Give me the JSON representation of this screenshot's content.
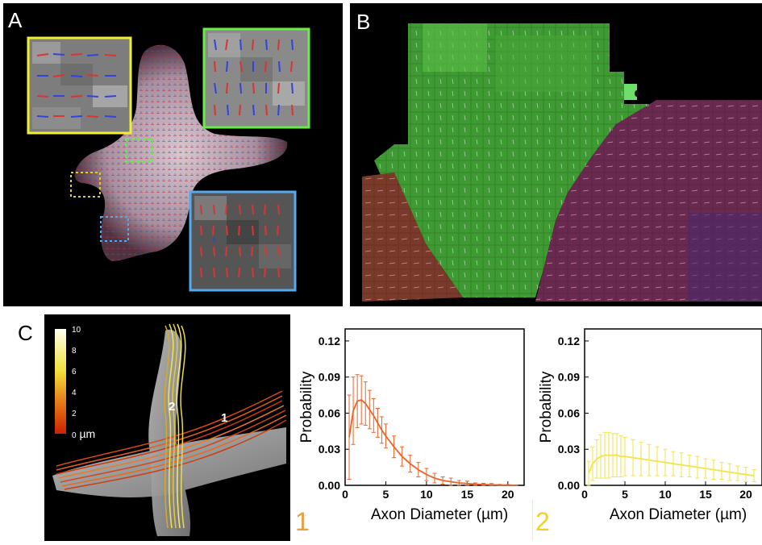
{
  "panel_a": {
    "label": "A"
  },
  "panel_b": {
    "label": "B"
  },
  "panel_c": {
    "label": "C",
    "colorbar": {
      "ticks": [
        "10",
        "8",
        "6",
        "4",
        "2",
        "0"
      ],
      "unit": "µm",
      "bottom_label": "0"
    },
    "bundle_labels": [
      "2",
      "1"
    ]
  },
  "colors": {
    "orange": "#e8642a",
    "yellow": "#f2e34a",
    "green_box": "#66ee44",
    "yellow_box": "#eeee33",
    "blue_box": "#55aaee"
  },
  "chart_data": [
    {
      "type": "line",
      "title": "",
      "panel_number": "1",
      "xlabel": "Axon Diameter (µm)",
      "ylabel": "Probability",
      "xlim": [
        0,
        22
      ],
      "ylim": [
        0,
        0.13
      ],
      "xticks": [
        "0",
        "5",
        "10",
        "15",
        "20"
      ],
      "yticks": [
        "0.00",
        "0.03",
        "0.06",
        "0.09",
        "0.12"
      ],
      "series": [
        {
          "x": [
            0.5,
            1,
            1.5,
            2,
            2.5,
            3,
            3.5,
            4,
            4.5,
            5,
            6,
            7,
            8,
            9,
            10,
            11,
            12,
            13,
            14,
            15,
            16,
            17,
            18,
            19,
            20,
            21
          ],
          "values": [
            0.04,
            0.062,
            0.07,
            0.071,
            0.068,
            0.063,
            0.058,
            0.052,
            0.046,
            0.041,
            0.032,
            0.024,
            0.018,
            0.013,
            0.009,
            0.006,
            0.004,
            0.003,
            0.002,
            0.0015,
            0.001,
            0.0007,
            0.0005,
            0.0003,
            0.0002,
            0.0001
          ],
          "error": [
            0.035,
            0.028,
            0.022,
            0.02,
            0.018,
            0.016,
            0.014,
            0.012,
            0.011,
            0.01,
            0.009,
            0.008,
            0.007,
            0.006,
            0.005,
            0.004,
            0.003,
            0.003,
            0.002,
            0.002,
            0.001,
            0.001,
            0.001,
            0.0005,
            0.0005,
            0.0003
          ]
        }
      ]
    },
    {
      "type": "line",
      "title": "",
      "panel_number": "2",
      "xlabel": "Axon Diameter (µm)",
      "ylabel": "Probability",
      "xlim": [
        0,
        22
      ],
      "ylim": [
        0,
        0.13
      ],
      "xticks": [
        "0",
        "5",
        "10",
        "15",
        "20"
      ],
      "yticks": [
        "0.00",
        "0.03",
        "0.06",
        "0.09",
        "0.12"
      ],
      "series": [
        {
          "x": [
            0.5,
            1,
            1.5,
            2,
            2.5,
            3,
            3.5,
            4,
            4.5,
            5,
            6,
            7,
            8,
            9,
            10,
            11,
            12,
            13,
            14,
            15,
            16,
            17,
            18,
            19,
            20,
            21
          ],
          "values": [
            0.01,
            0.018,
            0.022,
            0.024,
            0.025,
            0.025,
            0.025,
            0.025,
            0.024,
            0.024,
            0.023,
            0.022,
            0.021,
            0.02,
            0.019,
            0.018,
            0.017,
            0.016,
            0.015,
            0.014,
            0.013,
            0.012,
            0.011,
            0.01,
            0.009,
            0.008
          ],
          "error": [
            0.01,
            0.014,
            0.016,
            0.018,
            0.019,
            0.019,
            0.018,
            0.018,
            0.017,
            0.016,
            0.015,
            0.014,
            0.013,
            0.012,
            0.011,
            0.01,
            0.01,
            0.009,
            0.009,
            0.008,
            0.008,
            0.007,
            0.007,
            0.006,
            0.006,
            0.005
          ]
        }
      ]
    }
  ]
}
